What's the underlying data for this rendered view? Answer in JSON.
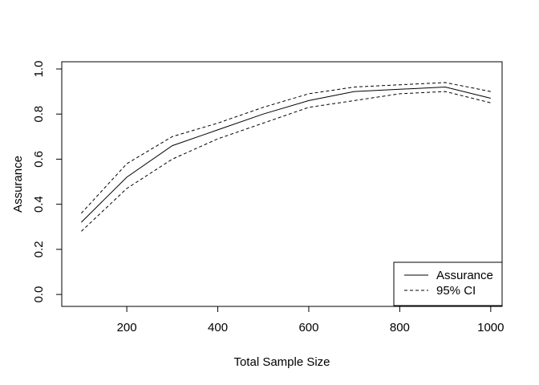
{
  "figure": {
    "background": "#ffffff",
    "foreground": "#000000"
  },
  "chart_data": {
    "type": "line",
    "title": "",
    "xlabel": "Total Sample Size",
    "ylabel": "Assurance",
    "x": [
      100,
      200,
      300,
      400,
      500,
      600,
      700,
      800,
      900,
      1000
    ],
    "series": [
      {
        "name": "Assurance",
        "style": "solid",
        "values": [
          0.32,
          0.52,
          0.66,
          0.73,
          0.8,
          0.86,
          0.9,
          0.91,
          0.92,
          0.87
        ]
      },
      {
        "name": "95% CI upper",
        "style": "dashed",
        "values": [
          0.36,
          0.58,
          0.7,
          0.76,
          0.83,
          0.89,
          0.92,
          0.93,
          0.94,
          0.9
        ]
      },
      {
        "name": "95% CI lower",
        "style": "dashed",
        "values": [
          0.28,
          0.47,
          0.6,
          0.69,
          0.76,
          0.83,
          0.86,
          0.89,
          0.9,
          0.85
        ]
      }
    ],
    "x_ticks": [
      200,
      400,
      600,
      800,
      1000
    ],
    "y_ticks": [
      "0.0",
      "0.2",
      "0.4",
      "0.6",
      "0.8",
      "1.0"
    ],
    "xlim": [
      57,
      1025
    ],
    "ylim": [
      -0.053,
      1.032
    ],
    "grid": false,
    "legend": {
      "position": "bottom-right",
      "entries": [
        {
          "label": "Assurance",
          "style": "solid"
        },
        {
          "label": "95% CI",
          "style": "dashed"
        }
      ]
    }
  }
}
